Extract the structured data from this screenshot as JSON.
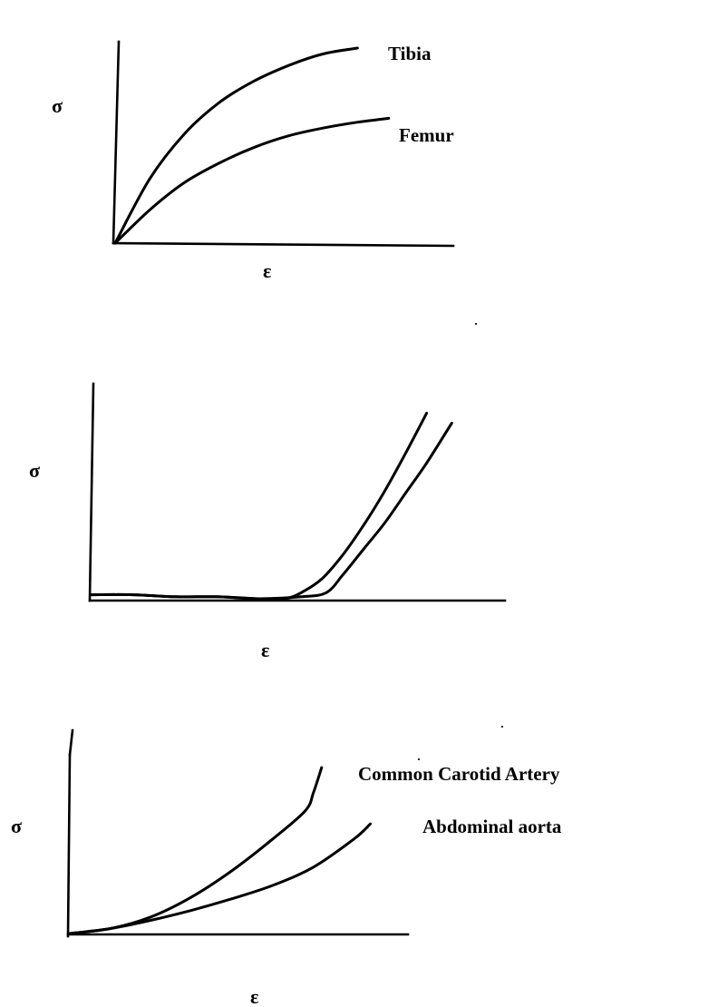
{
  "figure": {
    "background": "#ffffff",
    "ink_color": "#000000"
  },
  "chart_data": [
    {
      "type": "line",
      "ylabel": "σ",
      "xlabel": "ε",
      "xlim": [
        0,
        1
      ],
      "ylim": [
        0,
        1
      ],
      "grid": false,
      "series": [
        {
          "name": "Tibia",
          "x": [
            0,
            0.1,
            0.2,
            0.3,
            0.4,
            0.5,
            0.6,
            0.7
          ],
          "y": [
            0,
            0.33,
            0.56,
            0.72,
            0.83,
            0.91,
            0.97,
            1.0
          ]
        },
        {
          "name": "Femur",
          "x": [
            0,
            0.1,
            0.2,
            0.3,
            0.4,
            0.5,
            0.6,
            0.7,
            0.79
          ],
          "y": [
            0,
            0.17,
            0.31,
            0.41,
            0.49,
            0.55,
            0.59,
            0.62,
            0.64
          ]
        }
      ]
    },
    {
      "type": "line",
      "ylabel": "σ",
      "xlabel": "ε",
      "xlim": [
        0,
        1
      ],
      "ylim": [
        0,
        1
      ],
      "grid": false,
      "series": [
        {
          "x": [
            0,
            0.1,
            0.2,
            0.3,
            0.4,
            0.46,
            0.5,
            0.55,
            0.6,
            0.65,
            0.7,
            0.75,
            0.8
          ],
          "y": [
            0.02,
            0.02,
            0.01,
            0.01,
            0.0,
            0.0,
            0.03,
            0.1,
            0.22,
            0.37,
            0.54,
            0.73,
            0.93
          ]
        },
        {
          "x": [
            0,
            0.1,
            0.2,
            0.3,
            0.4,
            0.5,
            0.56,
            0.6,
            0.65,
            0.7,
            0.75,
            0.8,
            0.86
          ],
          "y": [
            0.02,
            0.02,
            0.01,
            0.01,
            0.0,
            0.01,
            0.03,
            0.12,
            0.25,
            0.38,
            0.53,
            0.68,
            0.88
          ]
        }
      ]
    },
    {
      "type": "line",
      "ylabel": "σ",
      "xlabel": "ε",
      "xlim": [
        0,
        1
      ],
      "ylim": [
        0,
        1
      ],
      "grid": false,
      "series": [
        {
          "name": "Common Carotid Artery",
          "x": [
            0,
            0.1,
            0.2,
            0.3,
            0.4,
            0.5,
            0.58,
            0.6,
            0.62
          ],
          "y": [
            0,
            0.03,
            0.1,
            0.22,
            0.38,
            0.57,
            0.74,
            0.85,
            1.0
          ]
        },
        {
          "name": "Abdominal aorta",
          "x": [
            0,
            0.1,
            0.2,
            0.3,
            0.4,
            0.5,
            0.6,
            0.7,
            0.74
          ],
          "y": [
            0,
            0.03,
            0.08,
            0.14,
            0.21,
            0.29,
            0.4,
            0.57,
            0.66
          ]
        }
      ]
    }
  ]
}
